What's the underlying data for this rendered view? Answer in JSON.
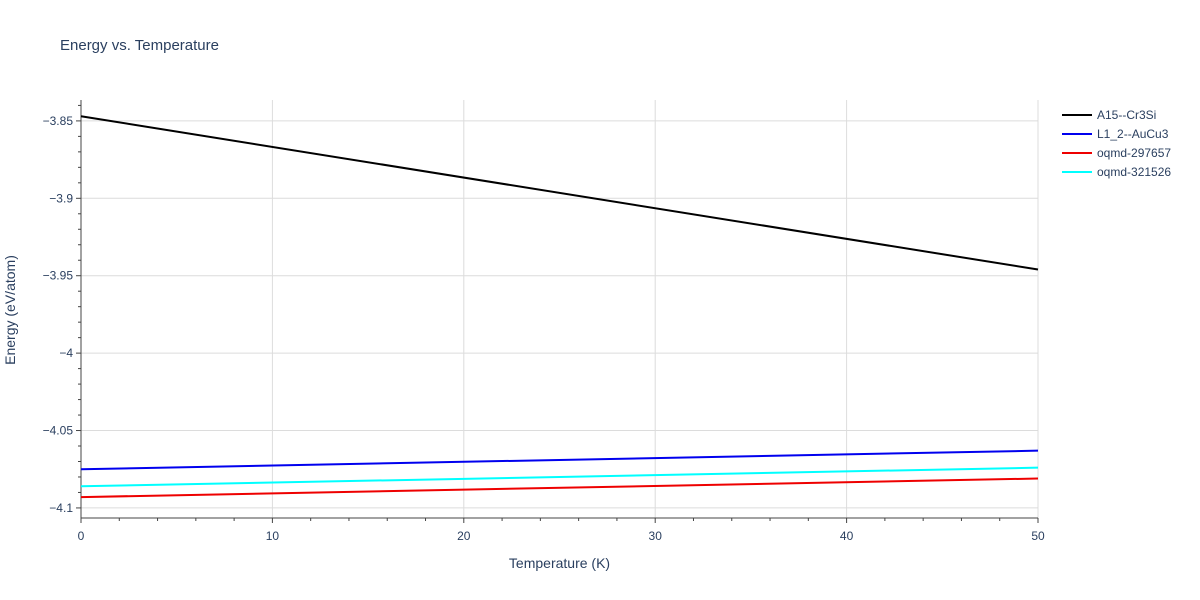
{
  "chart_data": {
    "type": "line",
    "title": "Energy vs. Temperature",
    "xlabel": "Temperature (K)",
    "ylabel": "Energy (eV/atom)",
    "xlim": [
      0,
      50
    ],
    "ylim": [
      -4.1065,
      -3.8365
    ],
    "x_ticks": [
      0,
      10,
      20,
      30,
      40,
      50
    ],
    "x_tick_labels": [
      "0",
      "10",
      "20",
      "30",
      "40",
      "50"
    ],
    "y_ticks": [
      -4.1,
      -4.05,
      -4.0,
      -3.95,
      -3.9,
      -3.85
    ],
    "y_tick_labels": [
      "−4.1",
      "−4.05",
      "−4",
      "−3.95",
      "−3.9",
      "−3.85"
    ],
    "grid": true,
    "legend_position": "top-right",
    "series": [
      {
        "name": "A15--Cr3Si",
        "color": "#000000",
        "x": [
          0,
          50
        ],
        "y": [
          -3.847,
          -3.946
        ]
      },
      {
        "name": "L1_2--AuCu3",
        "color": "#0000ee",
        "x": [
          0,
          50
        ],
        "y": [
          -4.075,
          -4.063
        ]
      },
      {
        "name": "oqmd-297657",
        "color": "#ee0000",
        "x": [
          0,
          50
        ],
        "y": [
          -4.093,
          -4.081
        ]
      },
      {
        "name": "oqmd-321526",
        "color": "#00ffff",
        "x": [
          0,
          50
        ],
        "y": [
          -4.086,
          -4.074
        ]
      }
    ]
  }
}
